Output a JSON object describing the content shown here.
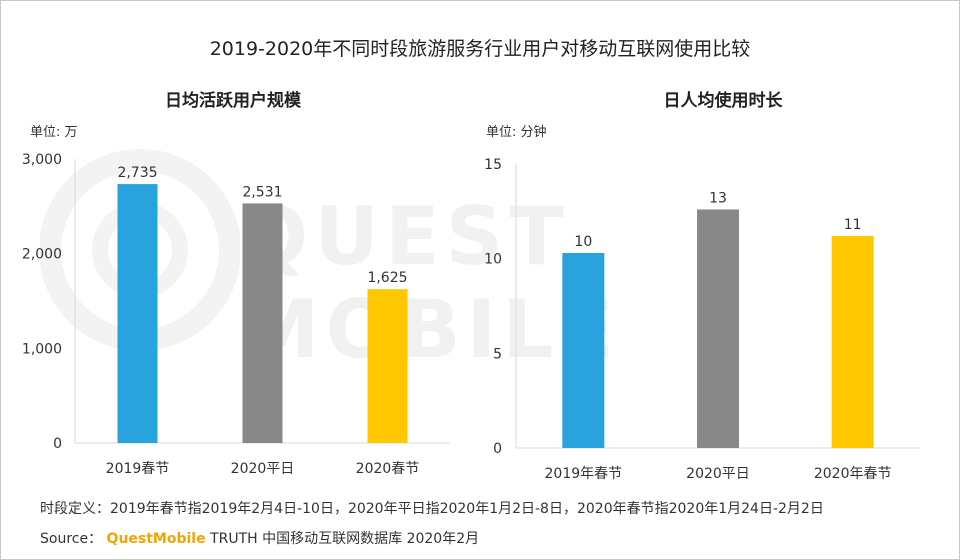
{
  "title": "2019-2020年不同时段旅游服务行业用户对移动互联网使用比较",
  "watermark": "QUEST MOBILE",
  "colors": {
    "bar_2019": "#29A3DD",
    "bar_2020ping": "#888888",
    "bar_2020chun": "#FFC700",
    "axis": "#d9d9d9"
  },
  "chart_data": [
    {
      "type": "bar",
      "title": "日均活跃用户规模",
      "unit_label": "单位: 万",
      "categories": [
        "2019春节",
        "2020平日",
        "2020春节"
      ],
      "values": [
        2735,
        2531,
        1625
      ],
      "value_labels": [
        "2,735",
        "2,531",
        "1,625"
      ],
      "yticks": [
        0,
        1000,
        2000,
        3000
      ],
      "ytick_labels": [
        "0",
        "1,000",
        "2,000",
        "3,000"
      ],
      "ylim": [
        0,
        3000
      ]
    },
    {
      "type": "bar",
      "title": "日人均使用时长",
      "unit_label": "单位: 分钟",
      "categories": [
        "2019年春节",
        "2020平日",
        "2020年春节"
      ],
      "values": [
        10.3,
        12.6,
        11.2
      ],
      "value_labels": [
        "10",
        "13",
        "11"
      ],
      "yticks": [
        0,
        5,
        10,
        15
      ],
      "ytick_labels": [
        "0",
        "5",
        "10",
        "15"
      ],
      "ylim": [
        0,
        15
      ]
    }
  ],
  "footer": {
    "definition": "时段定义：2019年春节指2019年2月4日-10日，2020年平日指2020年1月2日-8日，2020年春节指2020年1月24日-2月2日",
    "source_label": "Source：",
    "source_brand": "QuestMobile",
    "source_rest": " TRUTH 中国移动互联网数据库 2020年2月"
  }
}
